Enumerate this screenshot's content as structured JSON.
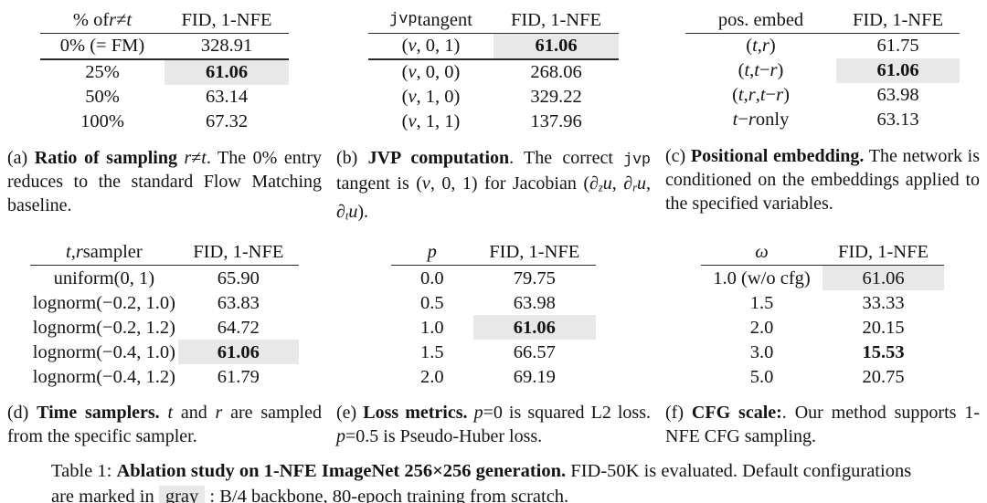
{
  "colors": {
    "background": "#ffffff",
    "text": "#141414",
    "rule": "#2b2b2b",
    "highlight": "#e8e8e8"
  },
  "tables": [
    {
      "key": "a",
      "header": {
        "label": [
          {
            "t": "% of ",
            "s": "p"
          },
          {
            "t": "r",
            "s": "i"
          },
          {
            "t": "≠",
            "s": "p"
          },
          {
            "t": "t",
            "s": "i"
          }
        ],
        "value": "FID, 1-NFE"
      },
      "rows": [
        {
          "label": [
            {
              "t": "0% (= FM)",
              "s": "p"
            }
          ],
          "value": "328.91",
          "highlight": false,
          "bold": false,
          "rule_below": true
        },
        {
          "label": [
            {
              "t": "25%",
              "s": "p"
            }
          ],
          "value": "61.06",
          "highlight": true,
          "bold": true,
          "rule_below": false
        },
        {
          "label": [
            {
              "t": "50%",
              "s": "p"
            }
          ],
          "value": "63.14",
          "highlight": false,
          "bold": false,
          "rule_below": false
        },
        {
          "label": [
            {
              "t": "100%",
              "s": "p"
            }
          ],
          "value": "67.32",
          "highlight": false,
          "bold": false,
          "rule_below": false
        }
      ],
      "caption": [
        {
          "t": "(a) ",
          "s": "p"
        },
        {
          "t": "Ratio of sampling ",
          "s": "b"
        },
        {
          "t": "r",
          "s": "i"
        },
        {
          "t": "≠",
          "s": "p"
        },
        {
          "t": "t",
          "s": "i"
        },
        {
          "t": ". The 0% entry reduces to the standard Flow Matching baseline.",
          "s": "p"
        }
      ]
    },
    {
      "key": "b",
      "header": {
        "label": [
          {
            "t": "jvp",
            "s": "m"
          },
          {
            "t": " tangent",
            "s": "p"
          }
        ],
        "value": "FID, 1-NFE"
      },
      "rows": [
        {
          "label": [
            {
              "t": "(",
              "s": "p"
            },
            {
              "t": "v",
              "s": "i"
            },
            {
              "t": ", 0, 1)",
              "s": "p"
            }
          ],
          "value": "61.06",
          "highlight": true,
          "bold": true,
          "rule_below": true
        },
        {
          "label": [
            {
              "t": "(",
              "s": "p"
            },
            {
              "t": "v",
              "s": "i"
            },
            {
              "t": ", 0, 0)",
              "s": "p"
            }
          ],
          "value": "268.06",
          "highlight": false,
          "bold": false,
          "rule_below": false
        },
        {
          "label": [
            {
              "t": "(",
              "s": "p"
            },
            {
              "t": "v",
              "s": "i"
            },
            {
              "t": ", 1, 0)",
              "s": "p"
            }
          ],
          "value": "329.22",
          "highlight": false,
          "bold": false,
          "rule_below": false
        },
        {
          "label": [
            {
              "t": "(",
              "s": "p"
            },
            {
              "t": "v",
              "s": "i"
            },
            {
              "t": ", 1, 1)",
              "s": "p"
            }
          ],
          "value": "137.96",
          "highlight": false,
          "bold": false,
          "rule_below": false
        }
      ],
      "caption": [
        {
          "t": "(b) ",
          "s": "p"
        },
        {
          "t": "JVP computation",
          "s": "b"
        },
        {
          "t": ". The correct ",
          "s": "p"
        },
        {
          "t": "jvp",
          "s": "m"
        },
        {
          "t": " tangent is (",
          "s": "p"
        },
        {
          "t": "v",
          "s": "i"
        },
        {
          "t": ", 0, 1) for Jacobian (∂",
          "s": "p"
        },
        {
          "t": "z",
          "s": "isub"
        },
        {
          "t": "u",
          "s": "i"
        },
        {
          "t": ", ∂",
          "s": "p"
        },
        {
          "t": "r",
          "s": "isub"
        },
        {
          "t": "u",
          "s": "i"
        },
        {
          "t": ", ∂",
          "s": "p"
        },
        {
          "t": "t",
          "s": "isub"
        },
        {
          "t": "u",
          "s": "i"
        },
        {
          "t": ").",
          "s": "p"
        }
      ]
    },
    {
      "key": "c",
      "header": {
        "label": [
          {
            "t": "pos. embed",
            "s": "p"
          }
        ],
        "value": "FID, 1-NFE"
      },
      "rows": [
        {
          "label": [
            {
              "t": "(",
              "s": "p"
            },
            {
              "t": "t",
              "s": "i"
            },
            {
              "t": ", ",
              "s": "p"
            },
            {
              "t": "r",
              "s": "i"
            },
            {
              "t": ")",
              "s": "p"
            }
          ],
          "value": "61.75",
          "highlight": false,
          "bold": false,
          "rule_below": false
        },
        {
          "label": [
            {
              "t": "(",
              "s": "p"
            },
            {
              "t": "t",
              "s": "i"
            },
            {
              "t": ", ",
              "s": "p"
            },
            {
              "t": "t",
              "s": "i"
            },
            {
              "t": "−",
              "s": "p"
            },
            {
              "t": "r",
              "s": "i"
            },
            {
              "t": ")",
              "s": "p"
            }
          ],
          "value": "61.06",
          "highlight": true,
          "bold": true,
          "rule_below": false
        },
        {
          "label": [
            {
              "t": "(",
              "s": "p"
            },
            {
              "t": "t",
              "s": "i"
            },
            {
              "t": ", ",
              "s": "p"
            },
            {
              "t": "r",
              "s": "i"
            },
            {
              "t": ", ",
              "s": "p"
            },
            {
              "t": "t",
              "s": "i"
            },
            {
              "t": "−",
              "s": "p"
            },
            {
              "t": "r",
              "s": "i"
            },
            {
              "t": ")",
              "s": "p"
            }
          ],
          "value": "63.98",
          "highlight": false,
          "bold": false,
          "rule_below": false
        },
        {
          "label": [
            {
              "t": "t",
              "s": "i"
            },
            {
              "t": "−",
              "s": "p"
            },
            {
              "t": "r",
              "s": "i"
            },
            {
              "t": " only",
              "s": "p"
            }
          ],
          "value": "63.13",
          "highlight": false,
          "bold": false,
          "rule_below": false
        }
      ],
      "caption": [
        {
          "t": "(c) ",
          "s": "p"
        },
        {
          "t": "Positional embedding.",
          "s": "b"
        },
        {
          "t": " The network is conditioned on the embeddings applied to the specified variables.",
          "s": "p"
        }
      ]
    },
    {
      "key": "d",
      "header": {
        "label": [
          {
            "t": "t",
            "s": "i"
          },
          {
            "t": ", ",
            "s": "p"
          },
          {
            "t": "r",
            "s": "i"
          },
          {
            "t": " sampler",
            "s": "p"
          }
        ],
        "value": "FID, 1-NFE"
      },
      "rows": [
        {
          "label": [
            {
              "t": "uniform(0, 1)",
              "s": "p"
            }
          ],
          "value": "65.90",
          "highlight": false,
          "bold": false,
          "rule_below": false
        },
        {
          "label": [
            {
              "t": "lognorm(−0.2, 1.0)",
              "s": "p"
            }
          ],
          "value": "63.83",
          "highlight": false,
          "bold": false,
          "rule_below": false
        },
        {
          "label": [
            {
              "t": "lognorm(−0.2, 1.2)",
              "s": "p"
            }
          ],
          "value": "64.72",
          "highlight": false,
          "bold": false,
          "rule_below": false
        },
        {
          "label": [
            {
              "t": "lognorm(−0.4, 1.0)",
              "s": "p"
            }
          ],
          "value": "61.06",
          "highlight": true,
          "bold": true,
          "rule_below": false
        },
        {
          "label": [
            {
              "t": "lognorm(−0.4, 1.2)",
              "s": "p"
            }
          ],
          "value": "61.79",
          "highlight": false,
          "bold": false,
          "rule_below": false
        }
      ],
      "caption": [
        {
          "t": "(d) ",
          "s": "p"
        },
        {
          "t": "Time samplers.",
          "s": "b"
        },
        {
          "t": " ",
          "s": "p"
        },
        {
          "t": "t",
          "s": "i"
        },
        {
          "t": " and ",
          "s": "p"
        },
        {
          "t": "r",
          "s": "i"
        },
        {
          "t": " are sampled from the specific sampler.",
          "s": "p"
        }
      ]
    },
    {
      "key": "e",
      "header": {
        "label": [
          {
            "t": "p",
            "s": "i"
          }
        ],
        "value": "FID, 1-NFE"
      },
      "rows": [
        {
          "label": [
            {
              "t": "0.0",
              "s": "p"
            }
          ],
          "value": "79.75",
          "highlight": false,
          "bold": false,
          "rule_below": false
        },
        {
          "label": [
            {
              "t": "0.5",
              "s": "p"
            }
          ],
          "value": "63.98",
          "highlight": false,
          "bold": false,
          "rule_below": false
        },
        {
          "label": [
            {
              "t": "1.0",
              "s": "p"
            }
          ],
          "value": "61.06",
          "highlight": true,
          "bold": true,
          "rule_below": false
        },
        {
          "label": [
            {
              "t": "1.5",
              "s": "p"
            }
          ],
          "value": "66.57",
          "highlight": false,
          "bold": false,
          "rule_below": false
        },
        {
          "label": [
            {
              "t": "2.0",
              "s": "p"
            }
          ],
          "value": "69.19",
          "highlight": false,
          "bold": false,
          "rule_below": false
        }
      ],
      "caption": [
        {
          "t": "(e) ",
          "s": "p"
        },
        {
          "t": "Loss metrics.",
          "s": "b"
        },
        {
          "t": " ",
          "s": "p"
        },
        {
          "t": "p",
          "s": "i"
        },
        {
          "t": "=0 is squared L2 loss. ",
          "s": "p"
        },
        {
          "t": "p",
          "s": "i"
        },
        {
          "t": "=0.5 is Pseudo-Huber loss.",
          "s": "p"
        }
      ]
    },
    {
      "key": "f",
      "header": {
        "label": [
          {
            "t": "ω",
            "s": "i"
          }
        ],
        "value": "FID, 1-NFE"
      },
      "rows": [
        {
          "label": [
            {
              "t": "1.0 (w/o cfg)",
              "s": "p"
            }
          ],
          "value": "61.06",
          "highlight": true,
          "bold": false,
          "rule_below": false
        },
        {
          "label": [
            {
              "t": "1.5",
              "s": "p"
            }
          ],
          "value": "33.33",
          "highlight": false,
          "bold": false,
          "rule_below": false
        },
        {
          "label": [
            {
              "t": "2.0",
              "s": "p"
            }
          ],
          "value": "20.15",
          "highlight": false,
          "bold": false,
          "rule_below": false
        },
        {
          "label": [
            {
              "t": "3.0",
              "s": "p"
            }
          ],
          "value": "15.53",
          "highlight": false,
          "bold": true,
          "rule_below": false
        },
        {
          "label": [
            {
              "t": "5.0",
              "s": "p"
            }
          ],
          "value": "20.75",
          "highlight": false,
          "bold": false,
          "rule_below": false
        }
      ],
      "caption": [
        {
          "t": "(f) ",
          "s": "p"
        },
        {
          "t": "CFG scale:",
          "s": "b"
        },
        {
          "t": ". Our method supports 1-NFE CFG sampling.",
          "s": "p"
        }
      ]
    }
  ],
  "footer": [
    {
      "t": "Table 1: ",
      "s": "p"
    },
    {
      "t": "Ablation study on 1-NFE ImageNet 256×256 generation.",
      "s": "b"
    },
    {
      "t": " FID-50K is evaluated. Default configurations are marked in ",
      "s": "p"
    },
    {
      "t": "gray",
      "s": "hl"
    },
    {
      "t": " : B/4 backbone, 80-epoch training from scratch.",
      "s": "p"
    }
  ]
}
